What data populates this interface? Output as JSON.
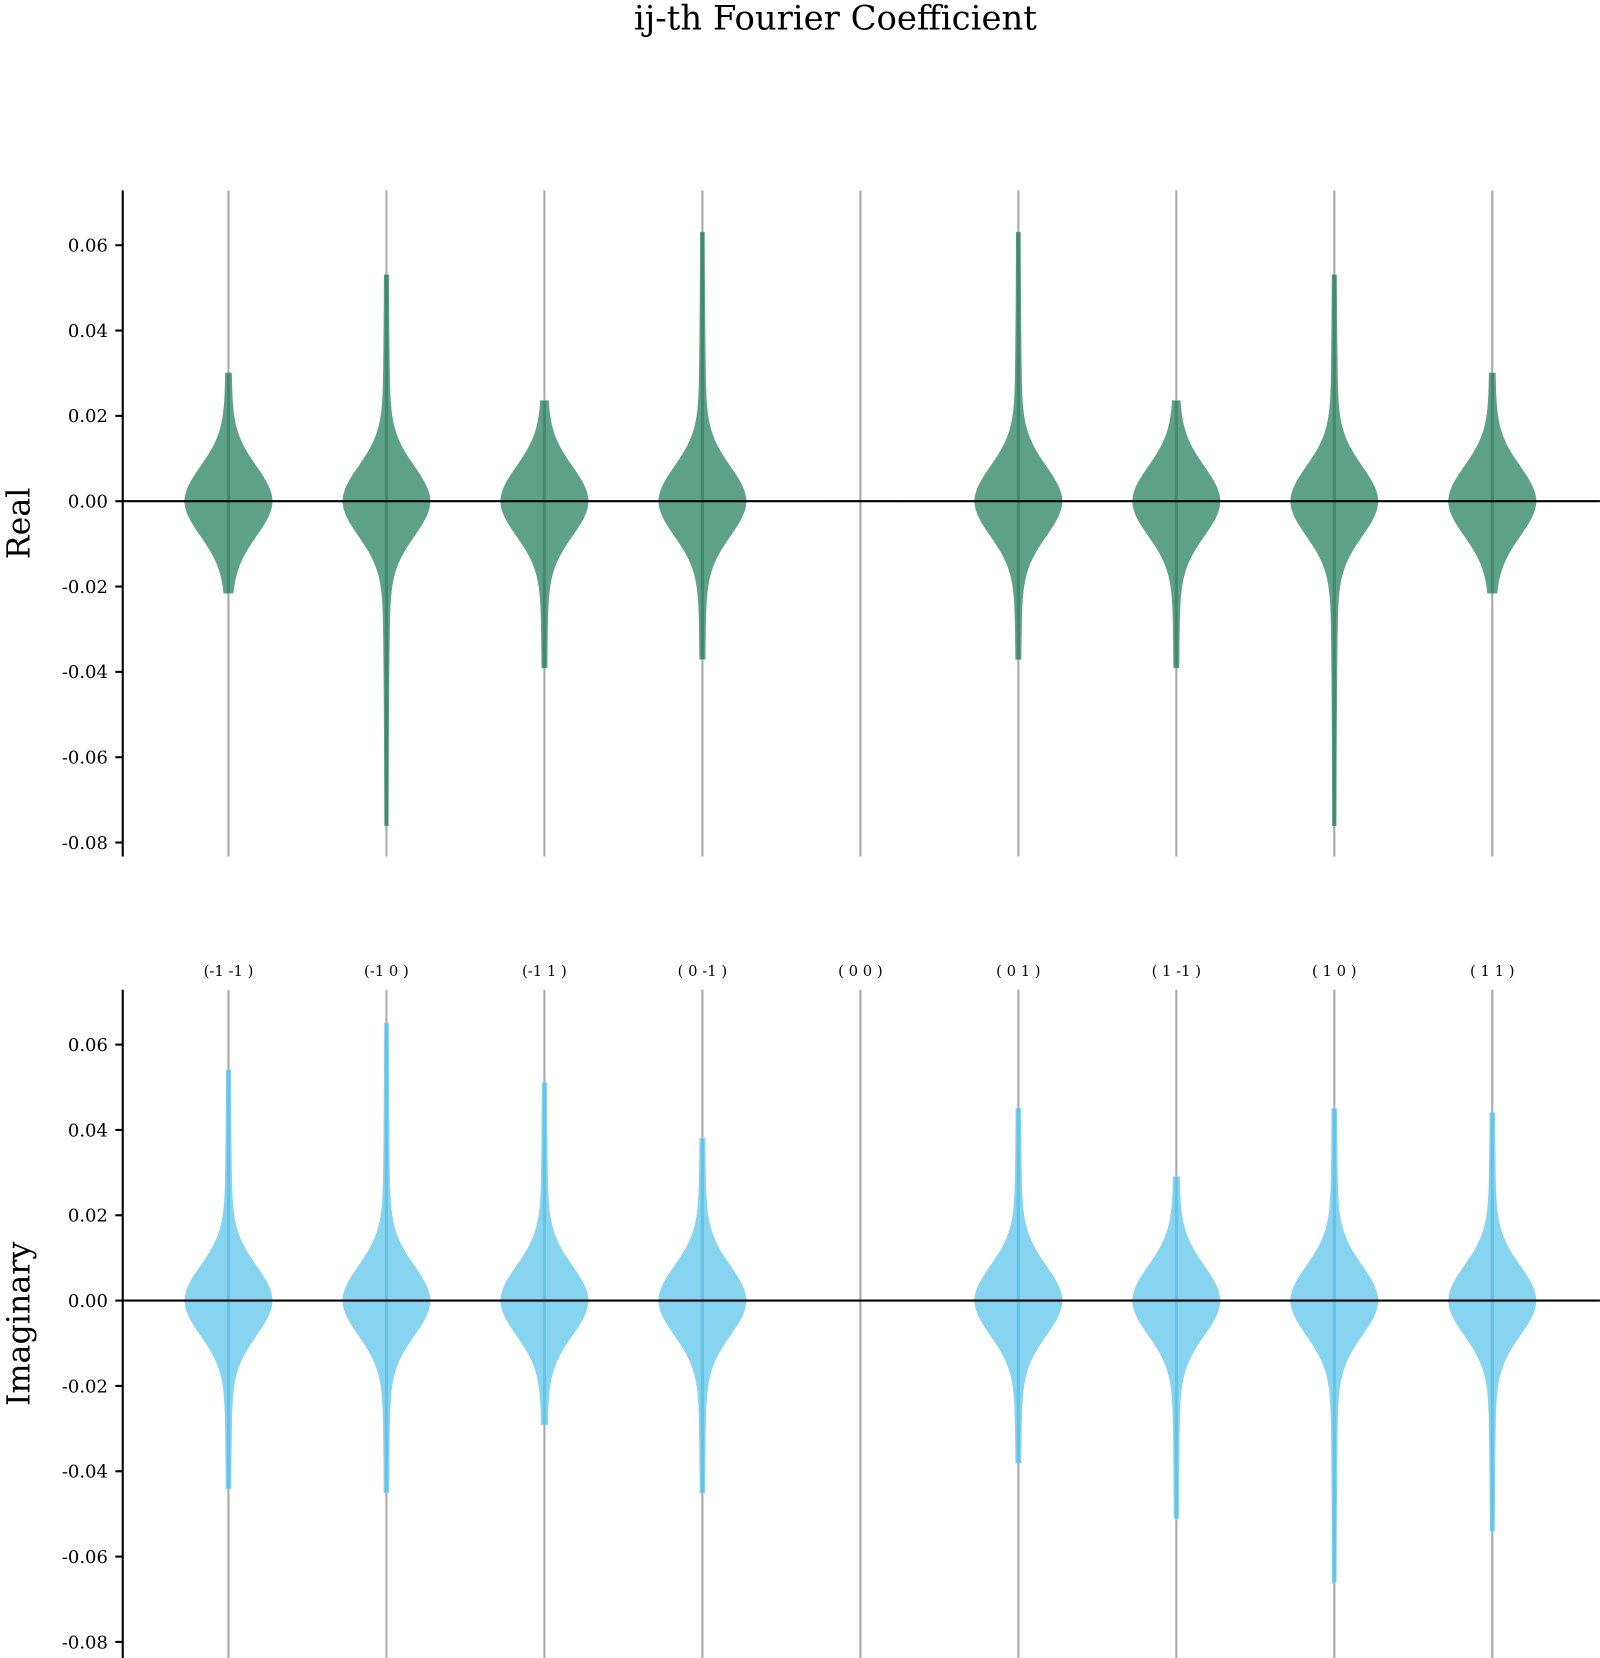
{
  "chart_data": {
    "type": "violin",
    "title": "ij-th Fourier Coefficient",
    "categories": [
      "(-1 -1 )",
      "(-1  0 )",
      "(-1  1 )",
      "( 0 -1 )",
      "( 0  0 )",
      "( 0  1 )",
      "( 1 -1 )",
      "( 1  0 )",
      "( 1  1 )"
    ],
    "yticks": [
      "0.06",
      "0.04",
      "0.02",
      "0.00",
      "-0.02",
      "-0.04",
      "-0.06",
      "-0.08"
    ],
    "ylim": [
      -0.083,
      0.073
    ],
    "grid": false,
    "panels": [
      {
        "ylabel": "Real",
        "color": "#5da287",
        "edge_color": "#3f8467",
        "ranges": [
          [
            -0.0215,
            0.03
          ],
          [
            -0.076,
            0.053
          ],
          [
            -0.039,
            0.0235
          ],
          [
            -0.037,
            0.063
          ],
          [
            0,
            0
          ],
          [
            -0.037,
            0.063
          ],
          [
            -0.039,
            0.0235
          ],
          [
            -0.076,
            0.053
          ],
          [
            -0.0215,
            0.03
          ]
        ]
      },
      {
        "ylabel": "Imaginary",
        "color": "#87d4f0",
        "edge_color": "#5cc1e6",
        "ranges": [
          [
            -0.044,
            0.054
          ],
          [
            -0.045,
            0.065
          ],
          [
            -0.029,
            0.051
          ],
          [
            -0.045,
            0.038
          ],
          null,
          [
            -0.038,
            0.045
          ],
          [
            -0.051,
            0.029
          ],
          [
            -0.066,
            0.045
          ],
          [
            -0.054,
            0.044
          ]
        ]
      }
    ]
  }
}
